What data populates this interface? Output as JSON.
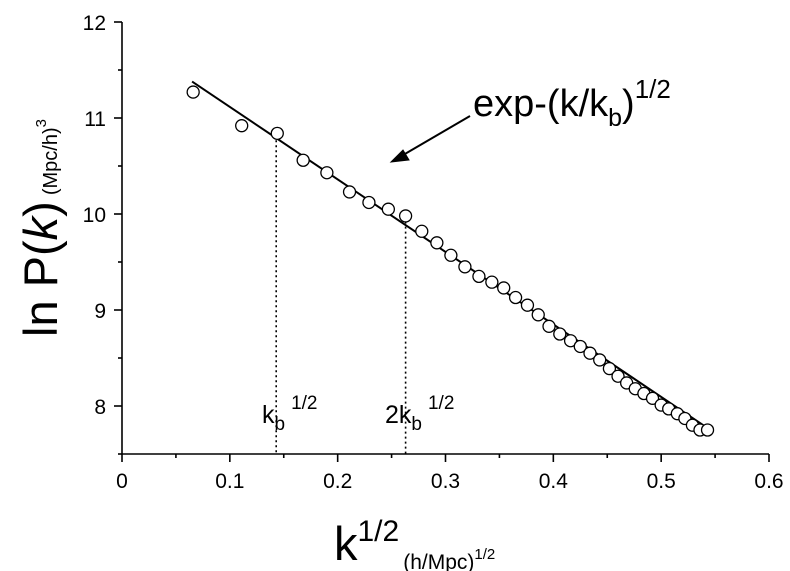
{
  "chart_data": {
    "type": "scatter",
    "title": "",
    "xlabel": "k",
    "xlabel_superscript": "1/2",
    "xlabel_unit": "(h/Mpc)",
    "xlabel_unit_superscript": "1/2",
    "ylabel": "ln P(k)",
    "ylabel_prefix": "ln P(",
    "ylabel_italic": "k",
    "ylabel_suffix": ")",
    "ylabel_unit": "(Mpc/h)",
    "ylabel_unit_superscript": "3",
    "xlim": [
      0,
      0.6
    ],
    "ylim": [
      7.5,
      12
    ],
    "xticks": [
      "0",
      "0.1",
      "0.2",
      "0.3",
      "0.4",
      "0.5",
      "0.6"
    ],
    "yticks": [
      "8",
      "9",
      "10",
      "11",
      "12"
    ],
    "grid": false,
    "legend": "none",
    "series": [
      {
        "marker": "open-circle",
        "x": [
          0.066,
          0.111,
          0.144,
          0.168,
          0.19,
          0.211,
          0.229,
          0.247,
          0.263,
          0.278,
          0.292,
          0.305,
          0.318,
          0.331,
          0.343,
          0.354,
          0.365,
          0.376,
          0.386,
          0.396,
          0.406,
          0.416,
          0.425,
          0.434,
          0.443,
          0.452,
          0.46,
          0.468,
          0.476,
          0.484,
          0.492,
          0.5,
          0.507,
          0.515,
          0.522,
          0.529,
          0.536,
          0.543
        ],
        "y": [
          11.27,
          10.92,
          10.84,
          10.56,
          10.43,
          10.23,
          10.12,
          10.05,
          9.98,
          9.82,
          9.7,
          9.57,
          9.45,
          9.35,
          9.29,
          9.23,
          9.13,
          9.05,
          8.95,
          8.83,
          8.75,
          8.68,
          8.62,
          8.55,
          8.48,
          8.39,
          8.31,
          8.24,
          8.18,
          8.13,
          8.08,
          8.01,
          7.97,
          7.92,
          7.87,
          7.8,
          7.75,
          7.75
        ]
      }
    ],
    "fit_line": {
      "x": [
        0.065,
        0.543
      ],
      "y": [
        11.38,
        7.77
      ]
    },
    "annotations": {
      "formula_prefix": "exp-(k/k",
      "formula_sub": "b",
      "formula_close": ")",
      "formula_sup": "1/2",
      "kb_main": "k",
      "kb_sub": "b",
      "kb_sup": "1/2",
      "kb_x": 0.143,
      "kb_y": 10.82,
      "two_kb_main": "2k",
      "two_kb_sub": "b",
      "two_kb_sup": "1/2",
      "two_kb_x": 0.263,
      "two_kb_y": 9.92
    }
  }
}
